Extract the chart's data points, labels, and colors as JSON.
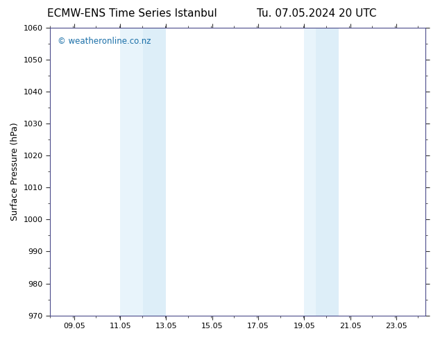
{
  "title_left": "ECMW-ENS Time Series Istanbul",
  "title_right": "Tu. 07.05.2024 20 UTC",
  "ylabel": "Surface Pressure (hPa)",
  "ylim": [
    970,
    1060
  ],
  "yticks": [
    970,
    980,
    990,
    1000,
    1010,
    1020,
    1030,
    1040,
    1050,
    1060
  ],
  "xlim": [
    8.0,
    24.333
  ],
  "xtick_positions": [
    9.05,
    11.05,
    13.05,
    15.05,
    17.05,
    19.05,
    21.05,
    23.05
  ],
  "xtick_labels": [
    "09.05",
    "11.05",
    "13.05",
    "15.05",
    "17.05",
    "19.05",
    "21.05",
    "23.05"
  ],
  "shaded_bands": [
    {
      "x_start": 11.05,
      "x_mid": 12.05,
      "x_end": 13.05
    },
    {
      "x_start": 19.05,
      "x_mid": 19.55,
      "x_end": 20.55
    }
  ],
  "band_color_light": "#ddeef8",
  "band_color_lighter": "#e8f4fb",
  "background_color": "#ffffff",
  "watermark_text": "© weatheronline.co.nz",
  "watermark_color": "#1a6fa8",
  "spine_color": "#4a4a8a",
  "tick_color": "#333333",
  "title_fontsize": 11,
  "ylabel_fontsize": 9,
  "tick_fontsize": 8,
  "fig_width": 6.34,
  "fig_height": 4.9,
  "dpi": 100
}
